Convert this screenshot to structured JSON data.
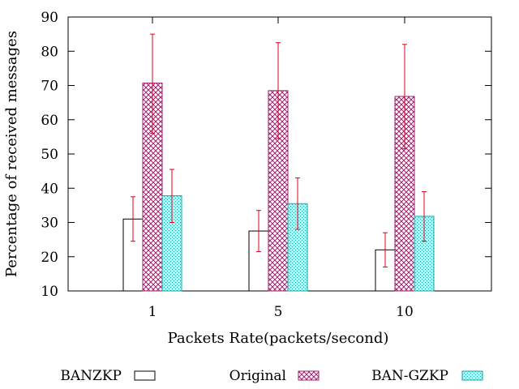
{
  "chart_data": {
    "type": "bar",
    "title": "",
    "xlabel": "Packets Rate(packets/second)",
    "ylabel": "Percentage of received messages",
    "categories": [
      "1",
      "5",
      "10"
    ],
    "ylim": [
      10,
      90
    ],
    "yticks": [
      10,
      20,
      30,
      40,
      50,
      60,
      70,
      80,
      90
    ],
    "grid": false,
    "legend_position": "bottom",
    "series": [
      {
        "name": "BANZKP",
        "pattern": "empty",
        "color": "#000000",
        "values": [
          31,
          27.5,
          22
        ],
        "error_low": [
          24.5,
          21.5,
          17
        ],
        "error_high": [
          37.5,
          33.5,
          27
        ]
      },
      {
        "name": "Original",
        "pattern": "crosshatch",
        "color": "#a0206e",
        "values": [
          70.7,
          68.5,
          66.8
        ],
        "error_low": [
          56,
          54.5,
          51.5
        ],
        "error_high": [
          85,
          82.5,
          82
        ]
      },
      {
        "name": "BAN-GZKP",
        "pattern": "dots",
        "color": "#1aa8a8",
        "values": [
          37.8,
          35.5,
          31.8
        ],
        "error_low": [
          30,
          28,
          24.5
        ],
        "error_high": [
          45.5,
          43,
          39
        ]
      }
    ],
    "error_bar_color": "#e0001b"
  }
}
